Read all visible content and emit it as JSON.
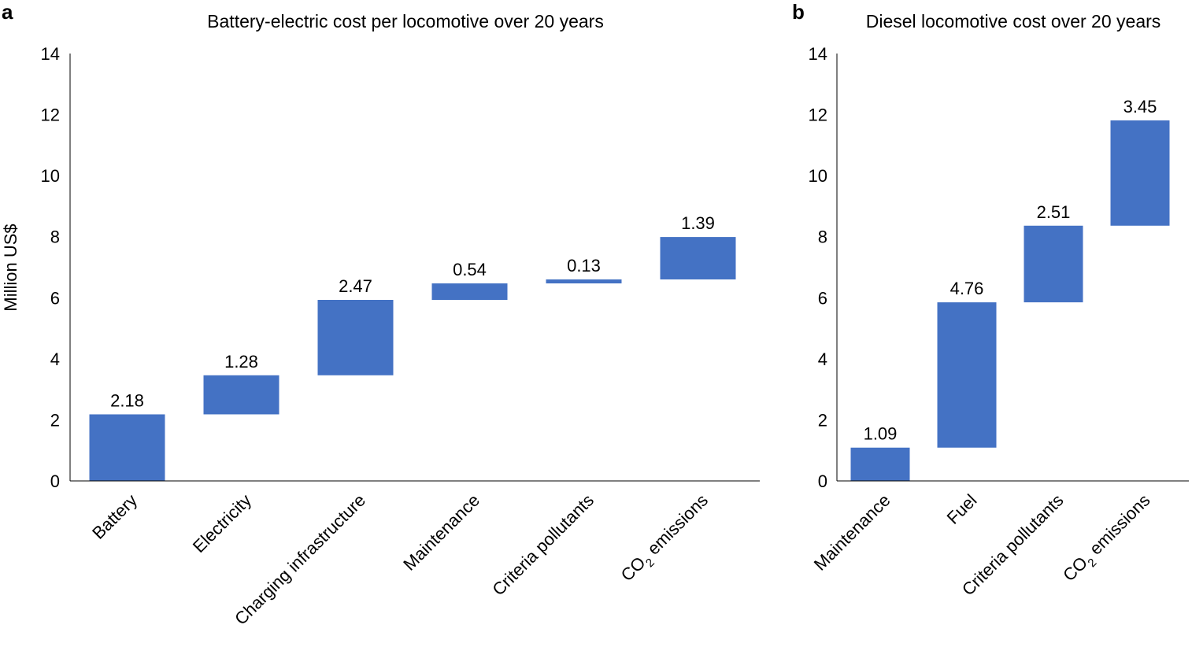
{
  "chart_data": [
    {
      "type": "bar",
      "subtype": "waterfall",
      "panel": "a",
      "title": "Battery-electric cost per locomotive over 20 years",
      "ylabel": "Million US$",
      "xlabel": "",
      "ylim": [
        0,
        14
      ],
      "yticks": [
        "0",
        "2",
        "4",
        "6",
        "8",
        "10",
        "12",
        "14"
      ],
      "grid": false,
      "bar_color": "#4472c4",
      "categories": [
        "Battery",
        "Electricity",
        "Charging infrastructure",
        "Maintenance",
        "Criteria pollutants",
        "CO2 emissions"
      ],
      "category_main": [
        "Battery",
        "Electricity",
        "Charging infrastructure",
        "Maintenance",
        "Criteria pollutants",
        "CO"
      ],
      "category_sub": [
        "",
        "",
        "",
        "",
        "",
        "2"
      ],
      "category_tail": [
        "",
        "",
        "",
        "",
        "",
        " emissions"
      ],
      "values": [
        2.18,
        1.28,
        2.47,
        0.54,
        0.13,
        1.39
      ],
      "value_labels": [
        "2.18",
        "1.28",
        "2.47",
        "0.54",
        "0.13",
        "1.39"
      ]
    },
    {
      "type": "bar",
      "subtype": "waterfall",
      "panel": "b",
      "title": "Diesel locomotive cost over 20 years",
      "ylabel": "",
      "xlabel": "",
      "ylim": [
        0,
        14
      ],
      "yticks": [
        "0",
        "2",
        "4",
        "6",
        "8",
        "10",
        "12",
        "14"
      ],
      "grid": false,
      "bar_color": "#4472c4",
      "categories": [
        "Maintenance",
        "Fuel",
        "Criteria pollutants",
        "CO2 emissions"
      ],
      "category_main": [
        "Maintenance",
        "Fuel",
        "Criteria pollutants",
        "CO"
      ],
      "category_sub": [
        "",
        "",
        "",
        "2"
      ],
      "category_tail": [
        "",
        "",
        "",
        " emissions"
      ],
      "values": [
        1.09,
        4.76,
        2.51,
        3.45
      ],
      "value_labels": [
        "1.09",
        "4.76",
        "2.51",
        "3.45"
      ]
    }
  ]
}
